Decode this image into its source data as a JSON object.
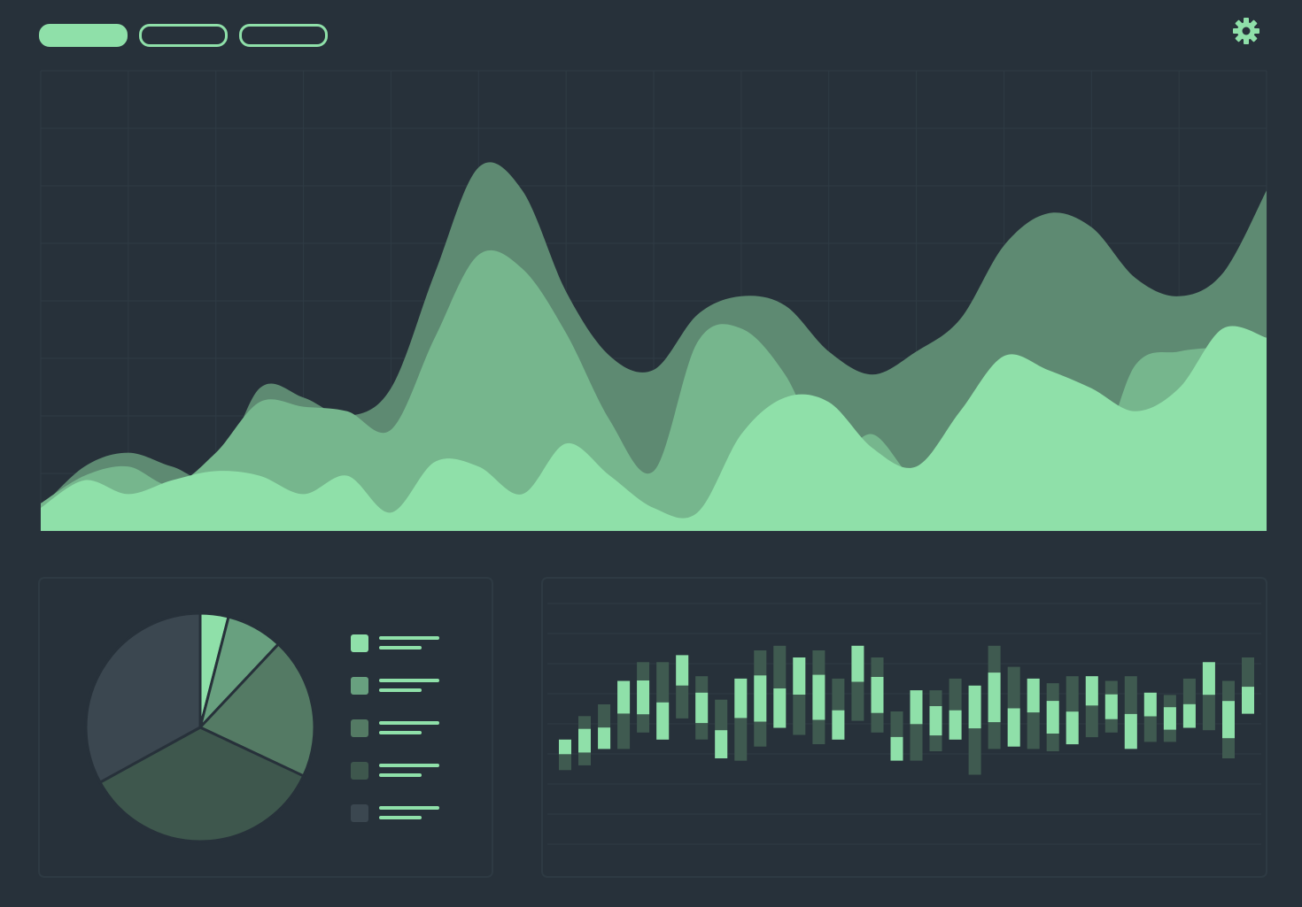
{
  "header": {
    "tabs": [
      {
        "label": "",
        "active": true
      },
      {
        "label": "",
        "active": false
      },
      {
        "label": "",
        "active": false
      }
    ],
    "settings_icon": "gear-icon"
  },
  "colors": {
    "background": "#27313a",
    "grid": "#2f3b44",
    "series": [
      "#5e8a72",
      "#76b68d",
      "#8fe0a9"
    ],
    "pie": [
      "#8fe0a9",
      "#68a07f",
      "#547a64",
      "#3e574d",
      "#3b4750"
    ],
    "candle_light": "#8fe0a9",
    "candle_dark": "#3f5a50"
  },
  "chart_data": [
    {
      "type": "area",
      "title": "",
      "xlabel": "",
      "ylabel": "",
      "x": [
        0,
        1,
        2,
        3,
        4,
        5,
        6,
        7,
        8,
        9,
        10,
        11,
        12,
        13,
        14,
        15,
        16,
        17,
        18,
        19,
        20,
        21,
        22,
        23,
        24,
        25,
        26,
        27,
        28
      ],
      "ylim": [
        0,
        100
      ],
      "grid": true,
      "series": [
        {
          "values": [
            5,
            14,
            17,
            14,
            12,
            31,
            29,
            25,
            31,
            56,
            79,
            74,
            52,
            38,
            35,
            47,
            51,
            49,
            39,
            34,
            39,
            46,
            62,
            69,
            66,
            55,
            51,
            56,
            74
          ]
        },
        {
          "values": [
            6,
            12,
            14,
            10,
            17,
            28,
            27,
            26,
            22,
            42,
            60,
            57,
            43,
            24,
            13,
            41,
            44,
            34,
            16,
            21,
            11,
            14,
            36,
            33,
            14,
            36,
            39,
            40,
            41
          ]
        },
        {
          "values": [
            5,
            11,
            8,
            11,
            13,
            12,
            8,
            12,
            4,
            15,
            14,
            8,
            19,
            12,
            5,
            4,
            21,
            29,
            28,
            18,
            14,
            26,
            38,
            35,
            31,
            26,
            31,
            44,
            42
          ]
        }
      ]
    },
    {
      "type": "pie",
      "title": "",
      "values": [
        4,
        8,
        20,
        35,
        33
      ],
      "legend": {
        "placement": "right",
        "entries": [
          "",
          "",
          "",
          "",
          ""
        ]
      }
    },
    {
      "type": "bar",
      "title": "",
      "subtype": "floating-range",
      "ylim": [
        0,
        100
      ],
      "grid": true,
      "series": [
        {
          "name": "",
          "ranges": [
            [
              32,
              45
            ],
            [
              34,
              55
            ],
            [
              41,
              60
            ],
            [
              41,
              70
            ],
            [
              48,
              78
            ],
            [
              45,
              78
            ],
            [
              54,
              81
            ],
            [
              45,
              72
            ],
            [
              37,
              62
            ],
            [
              36,
              71
            ],
            [
              42,
              83
            ],
            [
              50,
              85
            ],
            [
              47,
              80
            ],
            [
              43,
              83
            ],
            [
              45,
              71
            ],
            [
              53,
              85
            ],
            [
              48,
              80
            ],
            [
              36,
              57
            ],
            [
              36,
              66
            ],
            [
              40,
              66
            ],
            [
              45,
              71
            ],
            [
              30,
              68
            ],
            [
              41,
              85
            ],
            [
              42,
              76
            ],
            [
              41,
              71
            ],
            [
              40,
              69
            ],
            [
              43,
              72
            ],
            [
              46,
              72
            ],
            [
              48,
              70
            ],
            [
              41,
              72
            ],
            [
              44,
              65
            ],
            [
              44,
              64
            ],
            [
              50,
              71
            ],
            [
              49,
              78
            ],
            [
              37,
              70
            ],
            [
              56,
              80
            ]
          ]
        }
      ]
    }
  ]
}
